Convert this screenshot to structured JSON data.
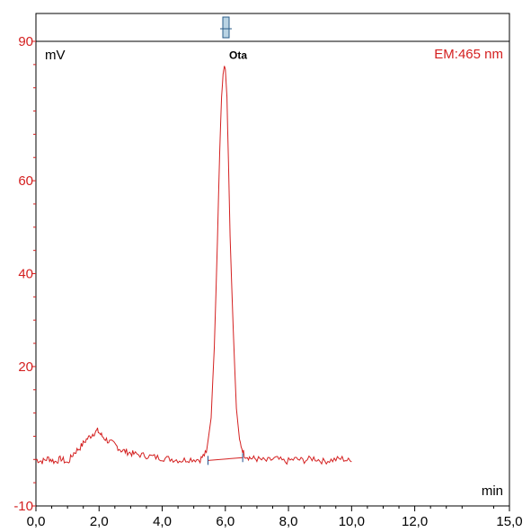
{
  "chart_data": {
    "type": "line",
    "y_unit": "mV",
    "x_unit": "min",
    "detector_label": "EM:465 nm",
    "peak_label": "Ota",
    "xlim": [
      0,
      15
    ],
    "ylim": [
      -10,
      90
    ],
    "x_ticks": [
      {
        "value": 0,
        "label": "0,0"
      },
      {
        "value": 2,
        "label": "2,0"
      },
      {
        "value": 4,
        "label": "4,0"
      },
      {
        "value": 6,
        "label": "6,0"
      },
      {
        "value": 8,
        "label": "8,0"
      },
      {
        "value": 10,
        "label": "10,0"
      },
      {
        "value": 12,
        "label": "12,0"
      },
      {
        "value": 15,
        "label": "15,0"
      }
    ],
    "y_ticks": [
      {
        "value": -10,
        "label": "-10"
      },
      {
        "value": 20,
        "label": "20"
      },
      {
        "value": 40,
        "label": "40"
      },
      {
        "value": 60,
        "label": "60"
      },
      {
        "value": 90,
        "label": "90"
      }
    ],
    "series": [
      {
        "color": "#d42020",
        "x": [
          0.0,
          0.2,
          0.4,
          0.6,
          0.8,
          1.0,
          1.2,
          1.4,
          1.6,
          1.8,
          1.95,
          2.1,
          2.3,
          2.5,
          2.7,
          2.9,
          3.1,
          3.4,
          3.7,
          4.0,
          4.3,
          4.6,
          4.9,
          5.2,
          5.4,
          5.55,
          5.65,
          5.75,
          5.82,
          5.88,
          5.93,
          5.97,
          6.0,
          6.05,
          6.1,
          6.15,
          6.25,
          6.35,
          6.45,
          6.6,
          6.8,
          7.0,
          7.3,
          7.6,
          7.9,
          8.2,
          8.5,
          8.8,
          9.1,
          9.4,
          9.7,
          10.0
        ],
        "y": [
          0.0,
          -0.4,
          0.3,
          -0.5,
          0.2,
          -0.8,
          1.4,
          2.6,
          4.3,
          5.5,
          6.2,
          5.0,
          3.9,
          3.2,
          2.0,
          1.6,
          1.2,
          0.9,
          0.6,
          0.3,
          0.1,
          -0.2,
          0.1,
          0.0,
          1.5,
          9.0,
          24.0,
          47.0,
          66.0,
          78.0,
          83.0,
          84.7,
          84.0,
          78.0,
          64.0,
          48.0,
          28.0,
          11.0,
          4.0,
          1.0,
          0.3,
          0.1,
          -0.3,
          0.2,
          -0.5,
          0.1,
          -0.2,
          0.3,
          -0.4,
          -0.1,
          0.2,
          -0.5
        ]
      }
    ],
    "baseline": {
      "x": [
        5.45,
        6.55
      ],
      "y": [
        -0.2,
        0.4
      ]
    },
    "peak_marker": {
      "x": 5.95,
      "y": 84.7
    },
    "grid": false
  }
}
